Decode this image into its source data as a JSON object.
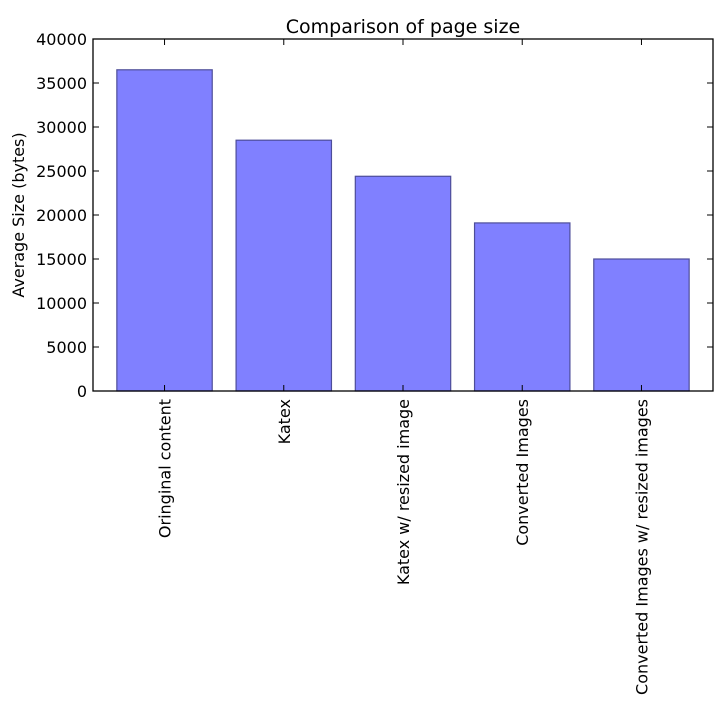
{
  "chart_data": {
    "type": "bar",
    "title": "Comparison of page size",
    "xlabel": "",
    "ylabel": "Average Size (bytes)",
    "categories": [
      "Oringinal content",
      "Katex",
      "Katex w/ resized image",
      "Converted Images",
      "Converted Images w/ resized images"
    ],
    "values": [
      36500,
      28500,
      24400,
      19100,
      15000
    ],
    "ylim": [
      0,
      40000
    ],
    "yticks": [
      0,
      5000,
      10000,
      15000,
      20000,
      25000,
      30000,
      35000,
      40000
    ],
    "ytick_labels": [
      "0",
      "5000",
      "10000",
      "15000",
      "20000",
      "25000",
      "30000",
      "35000",
      "40000"
    ],
    "bar_color": "#8080ff",
    "bar_edge_color": "#4d4d99",
    "grid": false,
    "legend": "none"
  }
}
